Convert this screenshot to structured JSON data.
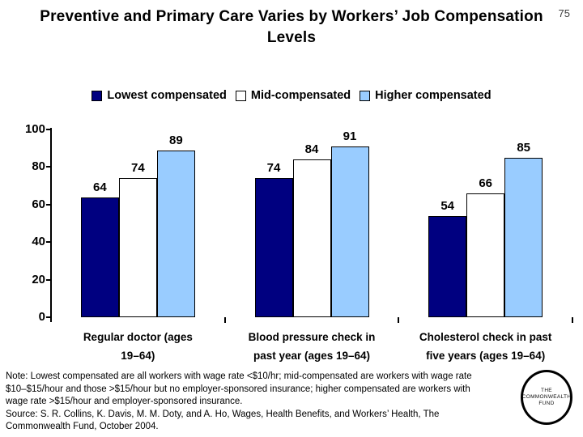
{
  "page_number": "75",
  "title": "Preventive and Primary Care Varies by Workers’ Job Compensation Levels",
  "note": {
    "text": "Note: Lowest compensated are all workers with wage rate <$10/hr; mid-compensated are workers with wage rate $10–$15/hour and those >$15/hour but no employer-sponsored insurance; higher compensated are workers with wage rate >$15/hour and employer-sponsored insurance.",
    "source": "Source: S. R. Collins, K. Davis, M. M. Doty, and A. Ho, Wages, Health Benefits, and Workers’ Health, The Commonwealth Fund, October 2004."
  },
  "logo": {
    "lines": [
      "THE",
      "COMMONWEALTH",
      "FUND"
    ]
  },
  "chart_data": {
    "type": "bar",
    "title": "",
    "xlabel": "",
    "ylabel": "",
    "categories": [
      "Regular doctor (ages 19–64)",
      "Blood pressure check in past year (ages 19–64)",
      "Cholesterol check in past five years (ages 19–64)"
    ],
    "series": [
      {
        "name": "Lowest compensated",
        "color": "#000080",
        "values": [
          64,
          74,
          54
        ]
      },
      {
        "name": "Mid-compensated",
        "color": "#FFFFFF",
        "values": [
          74,
          84,
          66
        ]
      },
      {
        "name": "Higher compensated",
        "color": "#99CCFF",
        "values": [
          89,
          91,
          85
        ]
      }
    ],
    "ylim": [
      0,
      100
    ],
    "yticks": [
      0,
      20,
      40,
      60,
      80,
      100
    ],
    "grid": false,
    "legend_position": "top",
    "bar_border_color": "#000000"
  }
}
